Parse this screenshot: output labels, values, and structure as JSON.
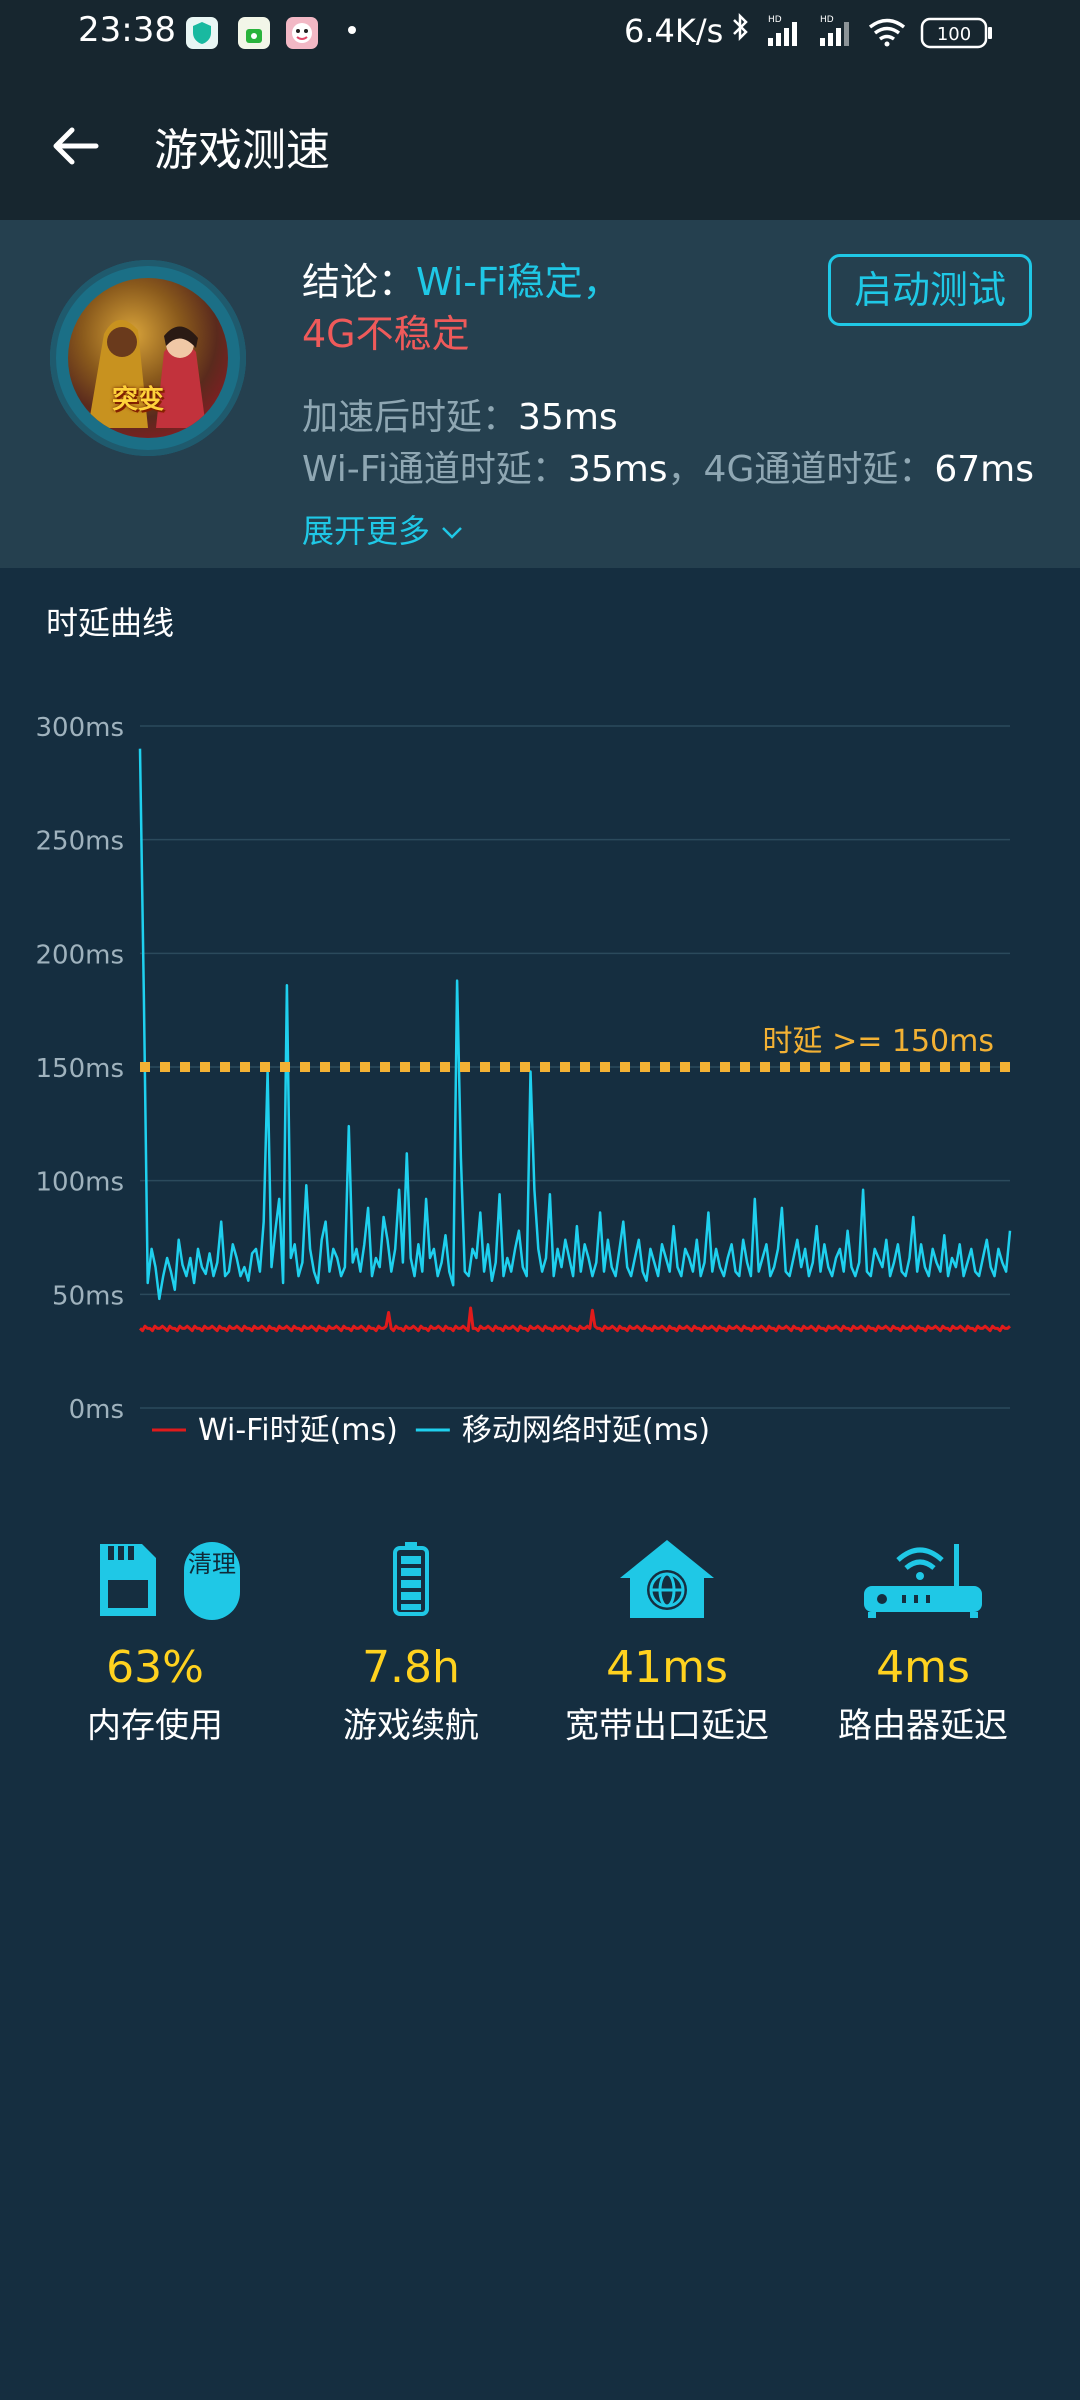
{
  "status_bar": {
    "time": "23:38",
    "speed": "6.4K/s",
    "battery": "100",
    "icons": [
      "shield-app-icon",
      "lock-app-icon",
      "face-app-icon",
      "bluetooth-icon",
      "signal-hd-icon",
      "signal-hd-icon",
      "wifi-icon",
      "battery-icon"
    ]
  },
  "header": {
    "title": "游戏测速"
  },
  "summary": {
    "conclusion_label": "结论：",
    "wifi_status": "Wi-Fi稳定，",
    "g4_status": "4G不稳定",
    "start_button": "启动测试",
    "accel_label": "加速后时延：",
    "accel_value": "35ms",
    "wifi_channel_label": "Wi-Fi通道时延：",
    "wifi_channel_value": "35ms",
    "sep": "，",
    "g4_channel_label": "4G通道时延：",
    "g4_channel_value": "67ms",
    "expand_more": "展开更多"
  },
  "chart_section": {
    "title": "时延曲线"
  },
  "chart_data": {
    "type": "line",
    "title": "",
    "xlabel": "",
    "ylabel": "",
    "ylim": [
      0,
      300
    ],
    "yticks": [
      "0ms",
      "50ms",
      "100ms",
      "150ms",
      "200ms",
      "250ms",
      "300ms"
    ],
    "threshold": {
      "value": 150,
      "label": "时延 >= 150ms",
      "color": "#f2b134"
    },
    "grid": true,
    "legend": "bottom-left",
    "series": [
      {
        "name": "Wi-Fi时延(ms)",
        "color": "#e01b1b",
        "values": [
          35,
          34,
          36,
          35,
          35,
          34,
          36,
          35,
          35,
          36,
          35,
          34,
          36,
          35,
          35,
          34,
          36,
          35,
          35,
          36,
          35,
          34,
          36,
          35,
          35,
          34,
          36,
          35,
          35,
          36,
          35,
          34,
          36,
          35,
          35,
          34,
          36,
          35,
          35,
          36,
          35,
          34,
          36,
          35,
          35,
          34,
          36,
          35,
          35,
          36,
          35,
          34,
          36,
          35,
          35,
          34,
          36,
          35,
          35,
          36,
          35,
          34,
          36,
          35,
          35,
          34,
          36,
          35,
          35,
          36,
          35,
          34,
          36,
          35,
          35,
          34,
          36,
          35,
          35,
          36,
          35,
          34,
          36,
          35,
          35,
          34,
          36,
          35,
          35,
          36,
          35,
          34,
          36,
          35,
          35,
          34,
          36,
          35,
          35,
          36,
          42,
          35,
          34,
          36,
          35,
          35,
          34,
          36,
          35,
          35,
          36,
          35,
          34,
          36,
          35,
          35,
          34,
          36,
          35,
          35,
          36,
          35,
          34,
          36,
          35,
          35,
          34,
          36,
          35,
          35,
          36,
          35,
          34,
          44,
          35,
          35,
          34,
          36,
          35,
          35,
          36,
          35,
          34,
          36,
          35,
          35,
          34,
          36,
          35,
          35,
          36,
          35,
          34,
          36,
          35,
          35,
          34,
          36,
          35,
          35,
          36,
          35,
          34,
          36,
          35,
          35,
          34,
          36,
          35,
          35,
          36,
          35,
          34,
          36,
          35,
          35,
          34,
          36,
          35,
          35,
          36,
          35,
          43,
          36,
          35,
          35,
          34,
          36,
          35,
          35,
          36,
          35,
          34,
          36,
          35,
          35,
          34,
          36,
          35,
          35,
          36,
          35,
          34,
          36,
          35,
          35,
          34,
          36,
          35,
          35,
          36,
          35,
          34,
          36,
          35,
          35,
          34,
          36,
          35,
          35,
          36,
          35,
          34,
          36,
          35,
          35,
          34,
          36,
          35,
          35,
          36,
          35,
          34,
          36,
          35,
          35,
          34,
          36,
          35,
          35,
          36,
          35,
          34,
          36,
          35,
          35,
          34,
          36,
          35,
          35,
          36,
          35,
          34,
          36,
          35,
          35,
          34,
          36,
          35,
          35,
          36,
          35,
          34,
          36,
          35,
          35,
          34,
          36,
          35,
          35,
          36,
          35,
          34,
          36,
          35,
          35,
          34,
          36,
          35,
          35,
          36,
          35,
          34,
          36,
          35,
          35,
          34,
          36,
          35,
          35,
          36,
          35,
          34,
          36,
          35,
          35,
          34,
          36,
          35,
          35,
          36,
          35,
          34,
          36,
          35,
          35,
          34,
          36,
          35,
          35,
          36,
          35,
          34,
          36,
          35,
          35,
          34,
          36,
          35,
          35,
          36,
          35,
          34,
          36,
          35,
          35,
          34,
          36,
          35,
          35,
          36,
          35,
          34,
          36,
          35,
          35,
          34,
          36,
          35,
          35,
          36,
          35,
          34,
          36,
          35,
          35,
          34,
          36,
          35,
          35,
          36
        ]
      },
      {
        "name": "移动网络时延(ms)",
        "color": "#1fd0ee",
        "values": [
          290,
          180,
          55,
          70,
          62,
          48,
          58,
          66,
          60,
          52,
          74,
          63,
          58,
          66,
          55,
          70,
          62,
          59,
          68,
          58,
          64,
          82,
          58,
          60,
          72,
          66,
          58,
          62,
          56,
          68,
          70,
          60,
          82,
          148,
          62,
          78,
          92,
          55,
          186,
          66,
          72,
          58,
          64,
          98,
          70,
          60,
          55,
          74,
          82,
          60,
          70,
          66,
          58,
          62,
          124,
          64,
          70,
          60,
          72,
          88,
          58,
          66,
          62,
          84,
          74,
          60,
          70,
          96,
          64,
          112,
          66,
          58,
          72,
          60,
          92,
          66,
          70,
          58,
          64,
          76,
          60,
          54,
          188,
          110,
          60,
          58,
          70,
          66,
          86,
          60,
          72,
          56,
          64,
          94,
          58,
          66,
          60,
          70,
          78,
          62,
          58,
          148,
          96,
          70,
          60,
          66,
          94,
          58,
          70,
          62,
          74,
          66,
          58,
          80,
          60,
          72,
          66,
          58,
          64,
          86,
          60,
          74,
          62,
          58,
          70,
          82,
          62,
          58,
          66,
          74,
          60,
          56,
          70,
          64,
          58,
          72,
          66,
          60,
          80,
          62,
          58,
          70,
          66,
          60,
          74,
          58,
          64,
          86,
          60,
          70,
          62,
          58,
          66,
          72,
          60,
          58,
          74,
          64,
          58,
          92,
          60,
          66,
          72,
          58,
          62,
          70,
          88,
          60,
          58,
          66,
          74,
          62,
          70,
          58,
          64,
          80,
          60,
          72,
          62,
          58,
          66,
          70,
          60,
          78,
          62,
          58,
          64,
          96,
          60,
          58,
          70,
          66,
          62,
          74,
          58,
          64,
          72,
          60,
          58,
          66,
          84,
          60,
          72,
          62,
          58,
          70,
          64,
          60,
          76,
          58,
          66,
          62,
          72,
          58,
          64,
          70,
          60,
          58,
          66,
          74,
          62,
          58,
          70,
          64,
          60,
          78
        ]
      }
    ]
  },
  "stats": [
    {
      "icon": "sd-card-icon",
      "value": "63%",
      "label": "内存使用",
      "badge": "清理"
    },
    {
      "icon": "battery-icon",
      "value": "7.8h",
      "label": "游戏续航"
    },
    {
      "icon": "house-globe-icon",
      "value": "41ms",
      "label": "宽带出口延迟"
    },
    {
      "icon": "router-icon",
      "value": "4ms",
      "label": "路由器延迟"
    }
  ],
  "colors": {
    "accent": "#1fc8e6",
    "warning": "#ef5a5a",
    "value_yellow": "#ffd21f",
    "threshold": "#f2b134",
    "background": "#152e40",
    "header_bg": "#17262f",
    "summary_bg": "#25404f"
  }
}
